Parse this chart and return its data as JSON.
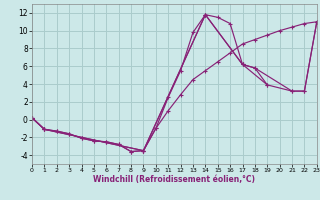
{
  "xlabel": "Windchill (Refroidissement éolien,°C)",
  "bg_color": "#cce8e8",
  "grid_color": "#aacccc",
  "line_color": "#882277",
  "xlim": [
    0,
    23
  ],
  "ylim": [
    -5,
    13
  ],
  "xticks": [
    0,
    1,
    2,
    3,
    4,
    5,
    6,
    7,
    8,
    9,
    10,
    11,
    12,
    13,
    14,
    15,
    16,
    17,
    18,
    19,
    20,
    21,
    22,
    23
  ],
  "yticks": [
    -4,
    -2,
    0,
    2,
    4,
    6,
    8,
    10,
    12
  ],
  "line1_x": [
    0,
    1,
    2,
    3,
    4,
    5,
    6,
    7,
    8,
    9,
    10,
    11,
    12,
    13,
    14,
    15,
    16,
    17,
    18,
    19
  ],
  "line1_y": [
    0.2,
    -1.1,
    -1.3,
    -1.6,
    -2.1,
    -2.4,
    -2.5,
    -2.8,
    -3.6,
    -3.5,
    -1.0,
    2.5,
    5.5,
    9.8,
    11.8,
    11.5,
    10.8,
    6.2,
    5.8,
    3.9
  ],
  "line2_x": [
    0,
    1,
    2,
    3,
    4,
    5,
    6,
    7,
    8,
    9,
    10,
    11,
    12,
    13,
    14,
    15,
    16,
    17,
    18,
    19,
    20,
    21,
    22,
    23
  ],
  "line2_y": [
    0.2,
    -1.1,
    -1.3,
    -1.6,
    -2.1,
    -2.4,
    -2.5,
    -2.8,
    -3.6,
    -3.5,
    -1.0,
    1.0,
    2.8,
    4.5,
    5.5,
    6.5,
    7.5,
    8.5,
    9.0,
    9.5,
    10.0,
    10.4,
    10.8,
    11.0
  ],
  "line3_x": [
    0,
    1,
    9,
    14,
    17,
    19,
    21,
    22,
    23
  ],
  "line3_y": [
    0.2,
    -1.1,
    -3.5,
    11.8,
    6.2,
    3.9,
    3.2,
    3.2,
    11.0
  ],
  "line4_x": [
    0,
    1,
    9,
    14,
    17,
    18,
    21,
    22,
    23
  ],
  "line4_y": [
    0.2,
    -1.1,
    -3.5,
    11.8,
    6.2,
    5.8,
    3.2,
    3.2,
    11.0
  ]
}
